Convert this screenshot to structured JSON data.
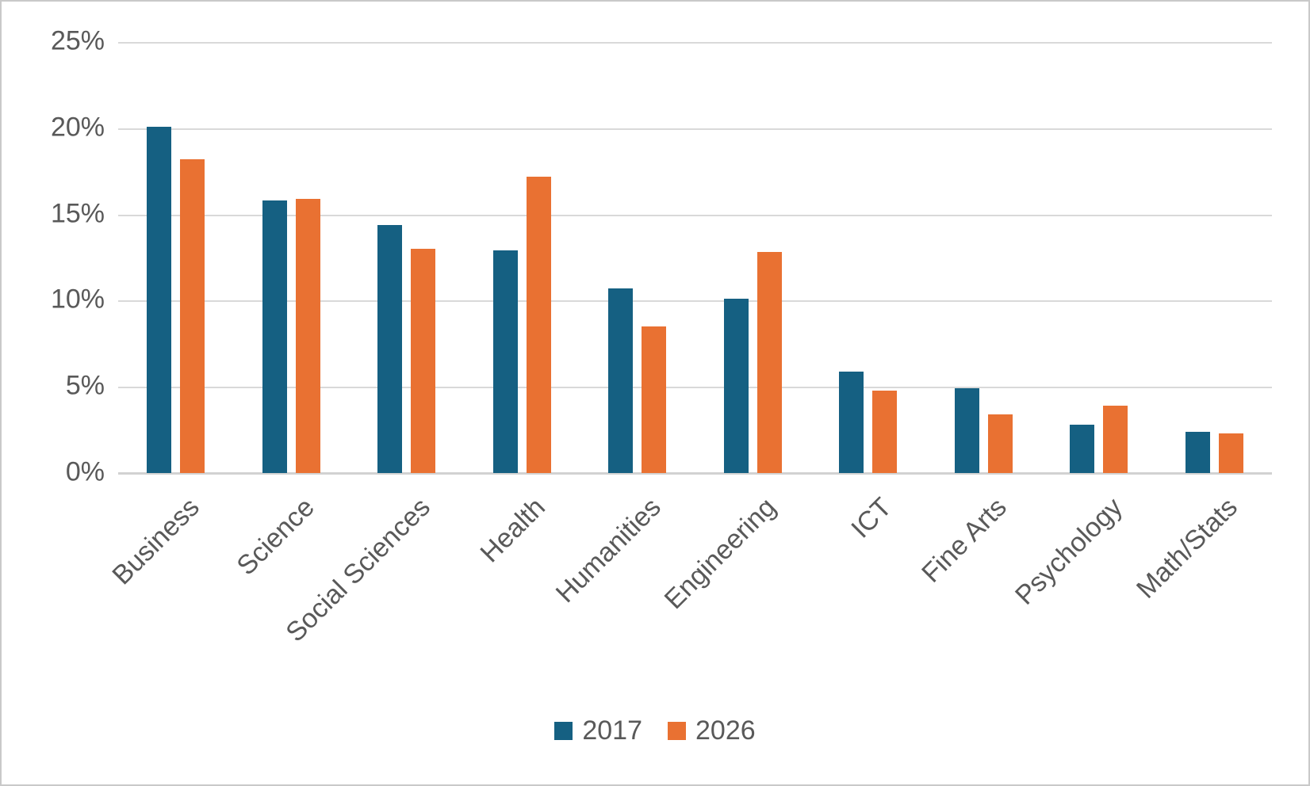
{
  "chart_data": {
    "type": "bar",
    "title": "",
    "xlabel": "",
    "ylabel": "",
    "categories": [
      "Business",
      "Science",
      "Social Sciences",
      "Health",
      "Humanities",
      "Engineering",
      "ICT",
      "Fine Arts",
      "Psychology",
      "Math/Stats"
    ],
    "series": [
      {
        "name": "2017",
        "color": "#156082",
        "values": [
          20.1,
          15.8,
          14.4,
          12.9,
          10.7,
          10.1,
          5.9,
          4.9,
          2.8,
          2.4
        ]
      },
      {
        "name": "2026",
        "color": "#E97132",
        "values": [
          18.2,
          15.9,
          13.0,
          17.2,
          8.5,
          12.8,
          4.8,
          3.4,
          3.9,
          2.3
        ]
      }
    ],
    "y_axis": {
      "min": 0,
      "max": 25,
      "step": 5,
      "tick_labels": [
        "0%",
        "5%",
        "10%",
        "15%",
        "20%",
        "25%"
      ],
      "unit": "%"
    },
    "grid": true,
    "legend_position": "bottom-center",
    "colors": {
      "series_2017": "#156082",
      "series_2026": "#E97132",
      "gridline": "#d9d9d9",
      "axis_text": "#595959",
      "frame_border": "#c9c9c9",
      "background": "#ffffff"
    }
  }
}
